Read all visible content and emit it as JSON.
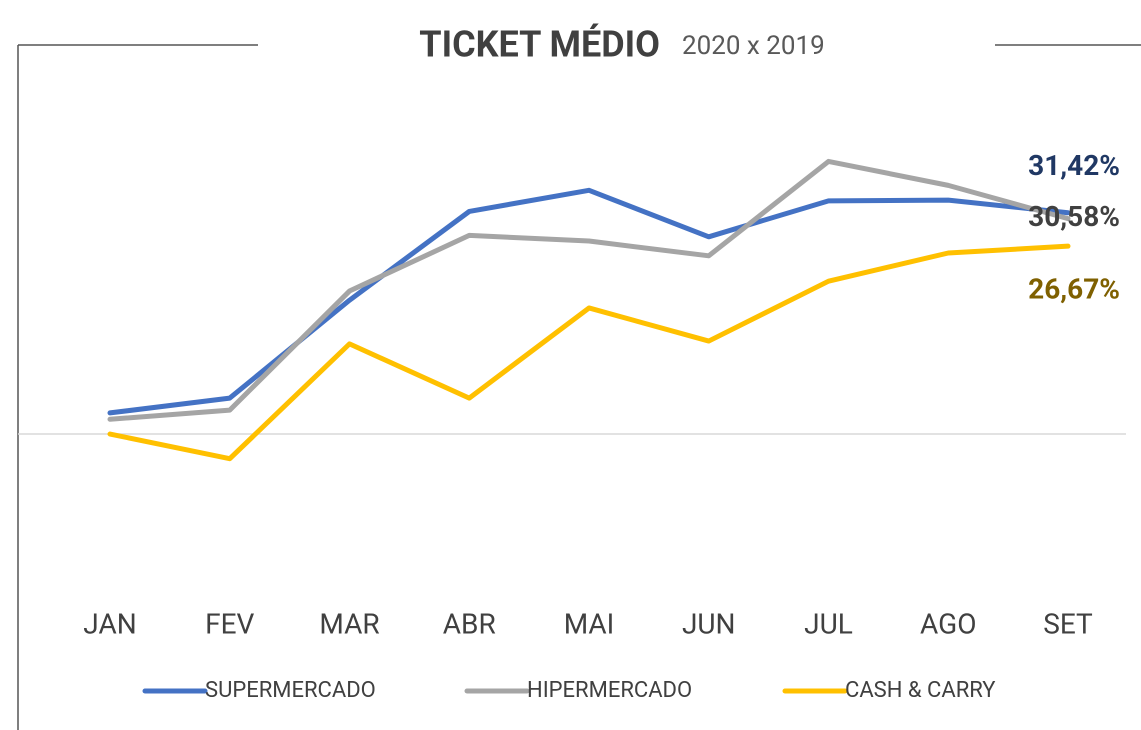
{
  "chart_data": {
    "type": "line",
    "title": "TICKET MÉDIO",
    "subtitle": "2020 x 2019",
    "categories": [
      "JAN",
      "FEV",
      "MAR",
      "ABR",
      "MAI",
      "JUN",
      "JUL",
      "AGO",
      "SET"
    ],
    "series": [
      {
        "name": "SUPERMERCADO",
        "color": "#4472c4",
        "label_color": "#203864",
        "values": [
          3.0,
          5.1,
          19.0,
          31.6,
          34.6,
          28.0,
          33.1,
          33.2,
          31.42
        ],
        "value_labels": [
          null,
          null,
          null,
          null,
          null,
          null,
          null,
          null,
          "31,42%"
        ]
      },
      {
        "name": "HIPERMERCADO",
        "color": "#a5a5a5",
        "label_color": "#404040",
        "values": [
          2.1,
          3.4,
          20.3,
          28.2,
          27.4,
          25.3,
          38.7,
          35.3,
          30.58
        ],
        "value_labels": [
          null,
          null,
          null,
          null,
          null,
          null,
          null,
          null,
          "30,58%"
        ]
      },
      {
        "name": "CASH & CARRY",
        "color": "#ffc000",
        "label_color": "#7f6000",
        "values": [
          0,
          -3.5,
          12.8,
          5.1,
          17.9,
          13.2,
          21.7,
          25.7,
          26.67
        ],
        "value_labels": [
          null,
          null,
          null,
          null,
          null,
          null,
          null,
          null,
          "26,67%"
        ]
      }
    ],
    "ylim": [
      -19.3,
      46
    ],
    "zero_line": true,
    "legend": "bottom"
  }
}
